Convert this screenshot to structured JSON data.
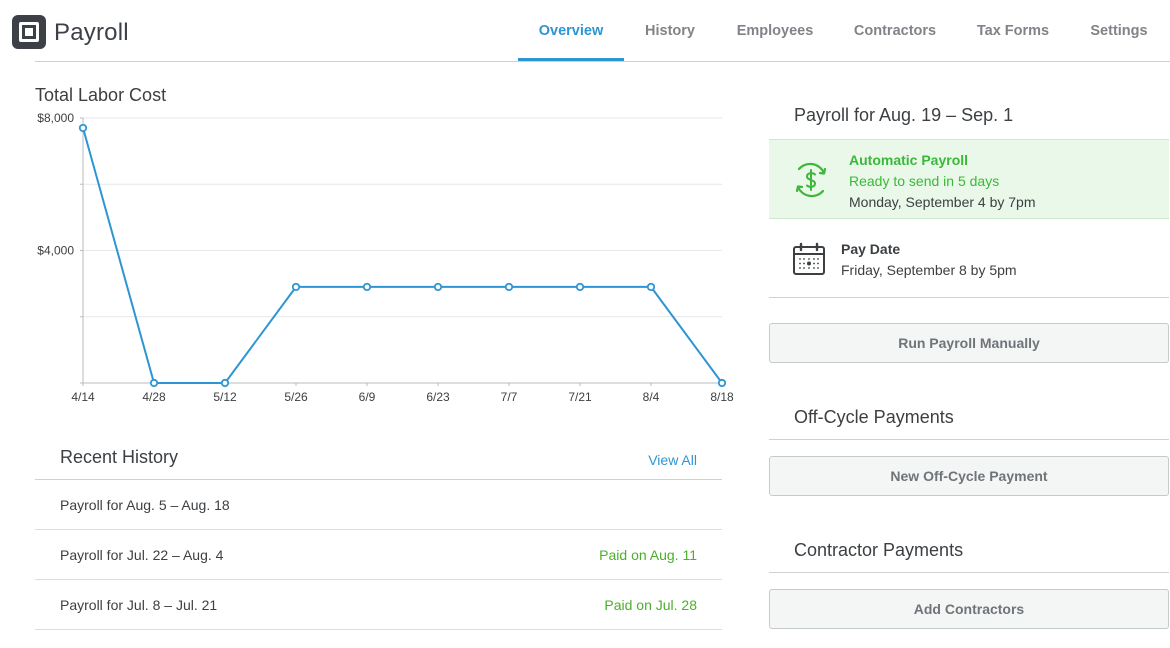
{
  "app": {
    "title": "Payroll",
    "logo_icon": "square-logo-icon"
  },
  "nav": {
    "tabs": [
      {
        "label": "Overview",
        "active": true
      },
      {
        "label": "History",
        "active": false
      },
      {
        "label": "Employees",
        "active": false
      },
      {
        "label": "Contractors",
        "active": false
      },
      {
        "label": "Tax Forms",
        "active": false
      },
      {
        "label": "Settings",
        "active": false
      }
    ]
  },
  "labor_cost": {
    "title": "Total Labor Cost"
  },
  "chart_data": {
    "type": "line",
    "title": "Total Labor Cost",
    "xlabel": "",
    "ylabel": "",
    "categories": [
      "4/14",
      "4/28",
      "5/12",
      "5/26",
      "6/9",
      "6/23",
      "7/7",
      "7/21",
      "8/4",
      "8/18"
    ],
    "values": [
      7700,
      0,
      0,
      2900,
      2900,
      2900,
      2900,
      2900,
      2900,
      0
    ],
    "ylim": [
      0,
      8000
    ],
    "yticks": [
      {
        "value": 8000,
        "label": "$8,000"
      },
      {
        "value": 4000,
        "label": "$4,000"
      }
    ],
    "grid": true,
    "color": "#2d95d3"
  },
  "history": {
    "title": "Recent History",
    "view_all": "View All",
    "rows": [
      {
        "label": "Payroll for Aug. 5 – Aug. 18",
        "status": ""
      },
      {
        "label": "Payroll for Jul. 22 – Aug. 4",
        "status": "Paid on Aug. 11"
      },
      {
        "label": "Payroll for Jul. 8 – Jul. 21",
        "status": "Paid on Jul. 28"
      }
    ]
  },
  "payroll_card": {
    "title": "Payroll for Aug. 19 – Sep. 1",
    "automatic": {
      "icon": "recurring-dollar-icon",
      "title": "Automatic Payroll",
      "subtitle": "Ready to send in 5 days",
      "date": "Monday, September 4 by 7pm",
      "color": "#3bb83a"
    },
    "pay_date": {
      "icon": "calendar-icon",
      "title": "Pay Date",
      "date": "Friday, September 8 by 5pm"
    },
    "run_button": "Run Payroll Manually"
  },
  "off_cycle": {
    "title": "Off-Cycle Payments",
    "button": "New Off-Cycle Payment"
  },
  "contractor": {
    "title": "Contractor Payments",
    "button": "Add Contractors"
  }
}
